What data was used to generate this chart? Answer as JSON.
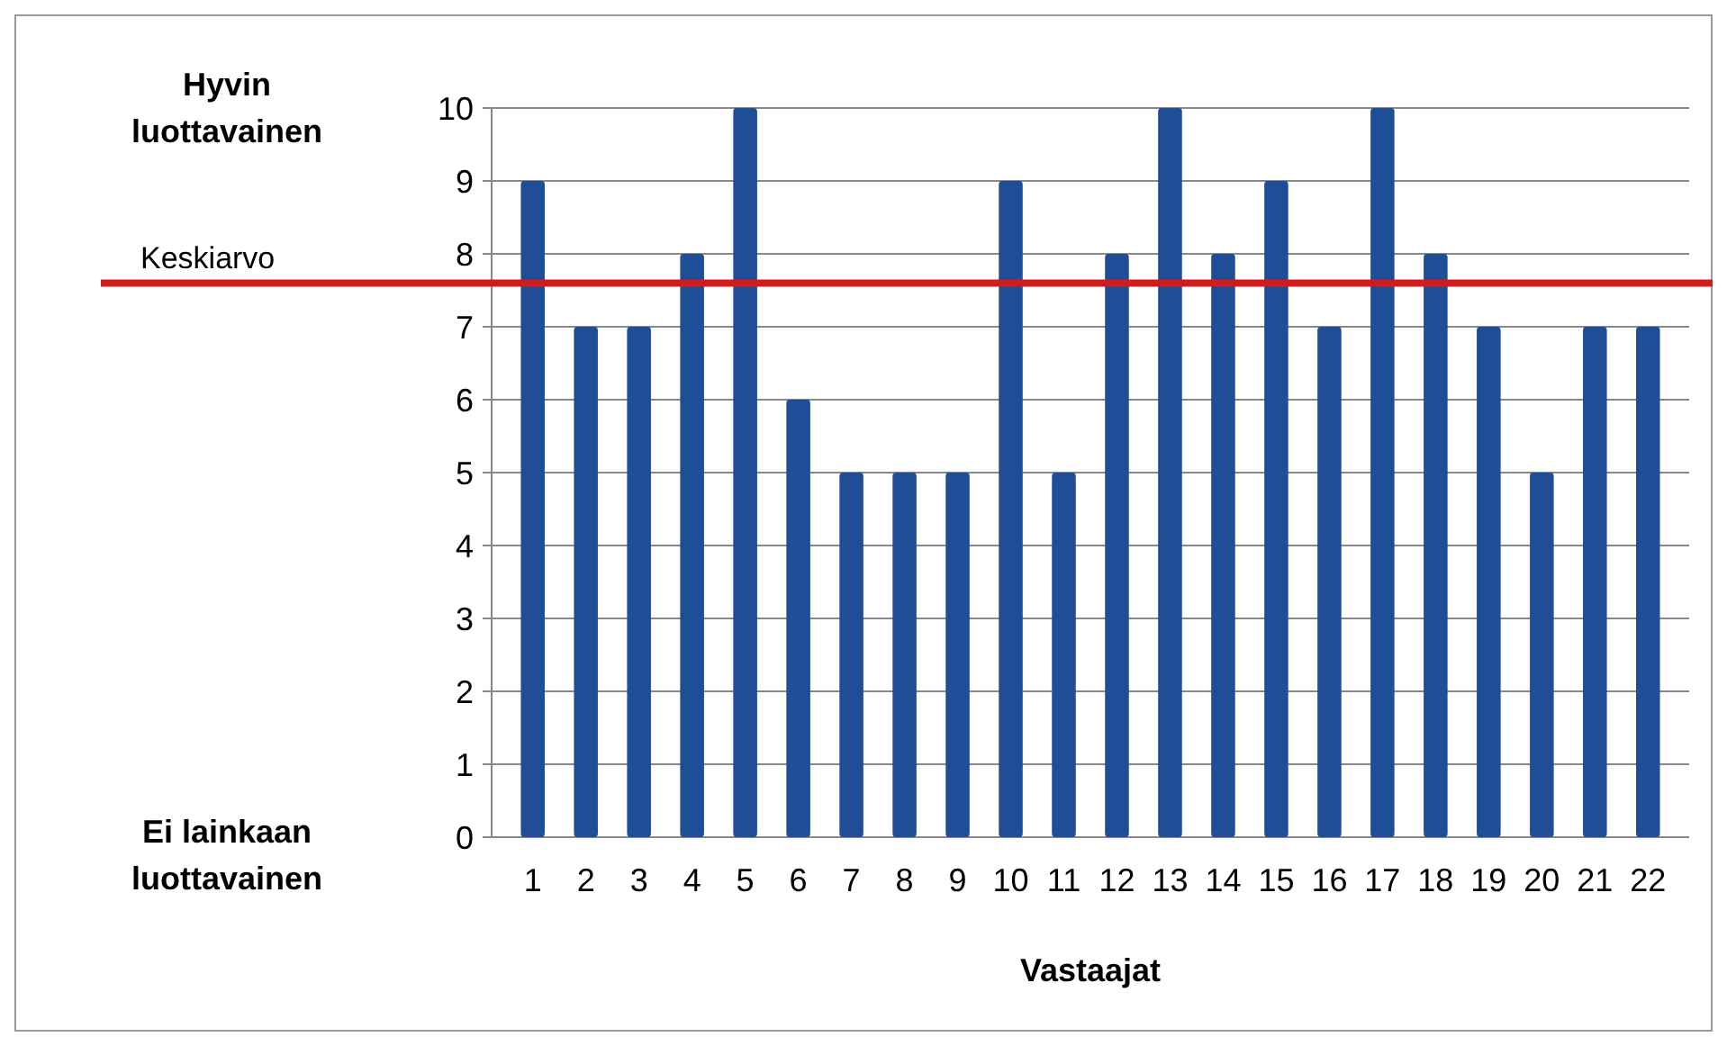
{
  "chart_data": {
    "type": "bar",
    "xlabel": "Vastaajat",
    "categories": [
      "1",
      "2",
      "3",
      "4",
      "5",
      "6",
      "7",
      "8",
      "9",
      "10",
      "11",
      "12",
      "13",
      "14",
      "15",
      "16",
      "17",
      "18",
      "19",
      "20",
      "21",
      "22"
    ],
    "values": [
      9,
      7,
      7,
      8,
      10,
      6,
      5,
      5,
      5,
      9,
      5,
      8,
      10,
      8,
      9,
      7,
      10,
      8,
      7,
      5,
      7,
      7
    ],
    "color": "#1f4e96",
    "ylim": [
      0,
      10
    ],
    "yticks": [
      0,
      1,
      2,
      3,
      4,
      5,
      6,
      7,
      8,
      9,
      10
    ],
    "grid": "y",
    "ref_lines": [
      {
        "axis": "y",
        "value": 7.6,
        "label": "Keskiarvo",
        "color": "#d01c1c"
      }
    ],
    "annotations": [
      "Hyvin luottavainen",
      "Ei lainkaan luottavainen"
    ]
  }
}
